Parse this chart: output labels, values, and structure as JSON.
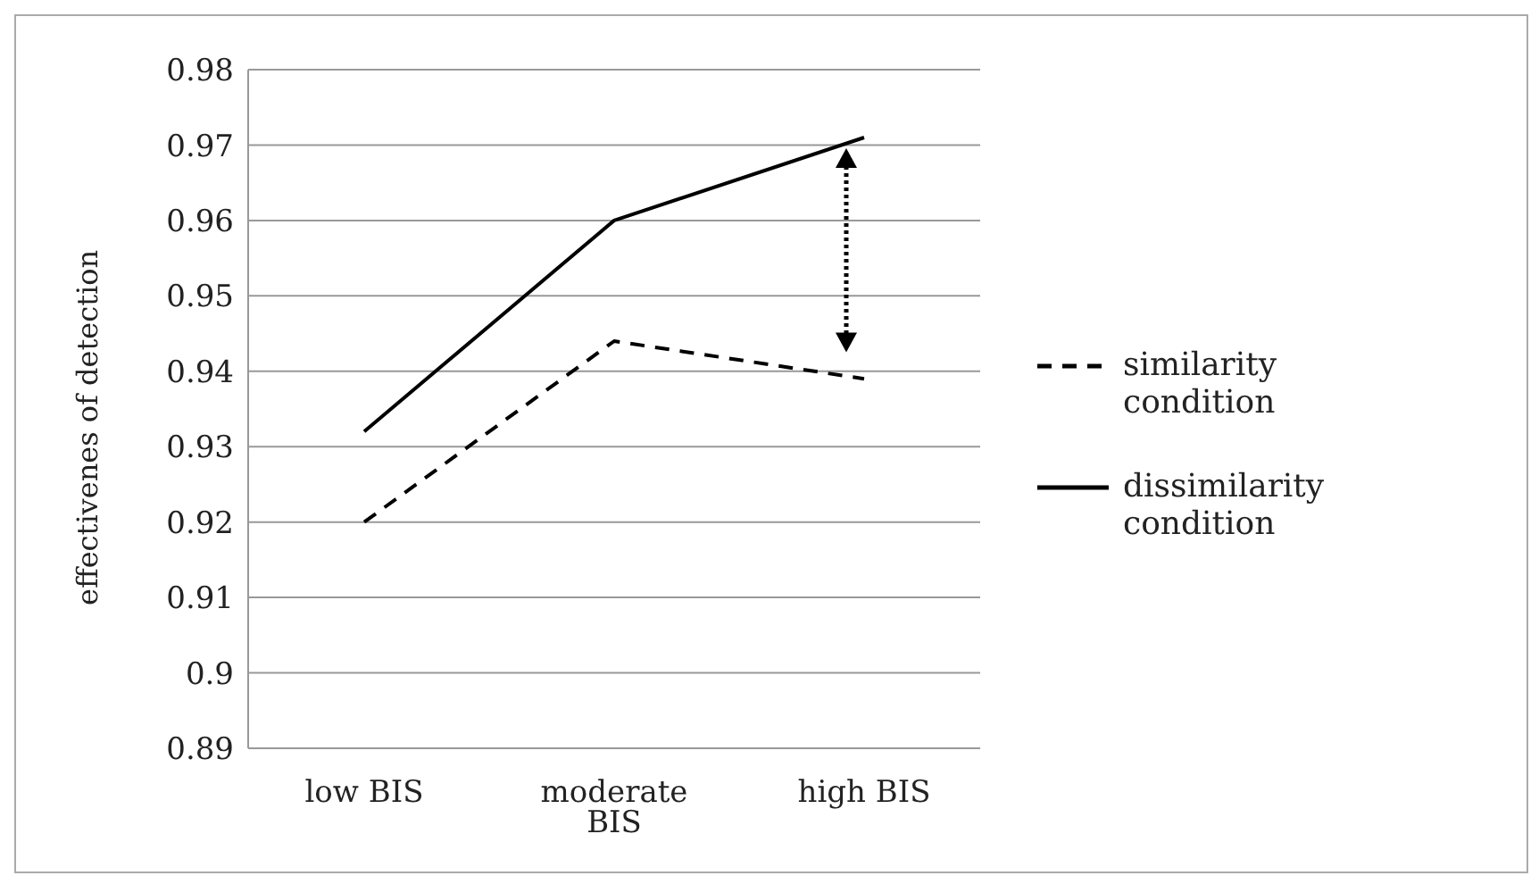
{
  "chart_data": {
    "type": "line",
    "ylabel": "effectivenes of detection",
    "categories": [
      "low BIS",
      "moderate BIS",
      "high BIS"
    ],
    "series": [
      {
        "name": "similarity condition",
        "color": "#000000",
        "line_style": "dashed",
        "values": [
          0.92,
          0.944,
          0.939
        ]
      },
      {
        "name": "dissimilarity condition",
        "color": "#000000",
        "line_style": "solid",
        "values": [
          0.932,
          0.96,
          0.971
        ]
      }
    ],
    "ylim": [
      0.89,
      0.98
    ],
    "yticks": [
      0.89,
      0.9,
      0.91,
      0.92,
      0.93,
      0.94,
      0.95,
      0.96,
      0.97,
      0.98
    ],
    "grid": "y",
    "legend": "right",
    "marker": "none"
  }
}
